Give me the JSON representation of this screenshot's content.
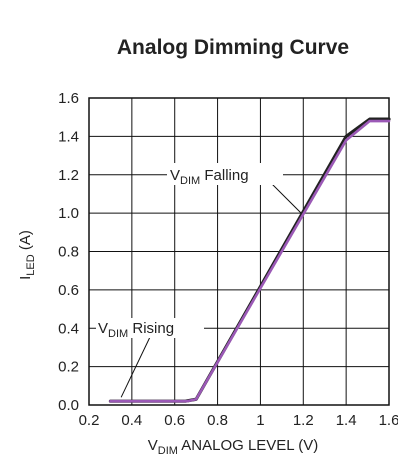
{
  "chart_data": {
    "type": "line",
    "title": "Analog Dimming Curve",
    "xlabel": {
      "main": "V",
      "sub": "DIM",
      "rest": " ANALOG LEVEL (V)"
    },
    "ylabel": {
      "main": "I",
      "sub": "LED",
      "rest": " (A)"
    },
    "xlim": [
      0.2,
      1.6
    ],
    "ylim": [
      0.0,
      1.6
    ],
    "x_ticks": [
      "0.2",
      "0.4",
      "0.6",
      "0.8",
      "1",
      "1.2",
      "1.4",
      "1.6"
    ],
    "y_ticks": [
      "0.0",
      "0.2",
      "0.4",
      "0.6",
      "0.8",
      "1.0",
      "1.2",
      "1.4",
      "1.6"
    ],
    "grid": true,
    "series": [
      {
        "name": "VDIM Falling",
        "color": "#222222",
        "x": [
          0.3,
          0.65,
          0.7,
          1.4,
          1.51,
          1.6
        ],
        "y": [
          0.02,
          0.02,
          0.03,
          1.4,
          1.49,
          1.49
        ]
      },
      {
        "name": "VDIM Rising",
        "color": "#9b59b6",
        "x": [
          0.3,
          0.66,
          0.7,
          1.4,
          1.51,
          1.6
        ],
        "y": [
          0.02,
          0.02,
          0.03,
          1.38,
          1.48,
          1.48
        ]
      }
    ],
    "annotations": [
      {
        "main": "V",
        "sub": "DIM",
        "rest": " Falling",
        "series": "VDIM Falling"
      },
      {
        "main": "V",
        "sub": "DIM",
        "rest": " Rising",
        "series": "VDIM Rising"
      }
    ]
  }
}
